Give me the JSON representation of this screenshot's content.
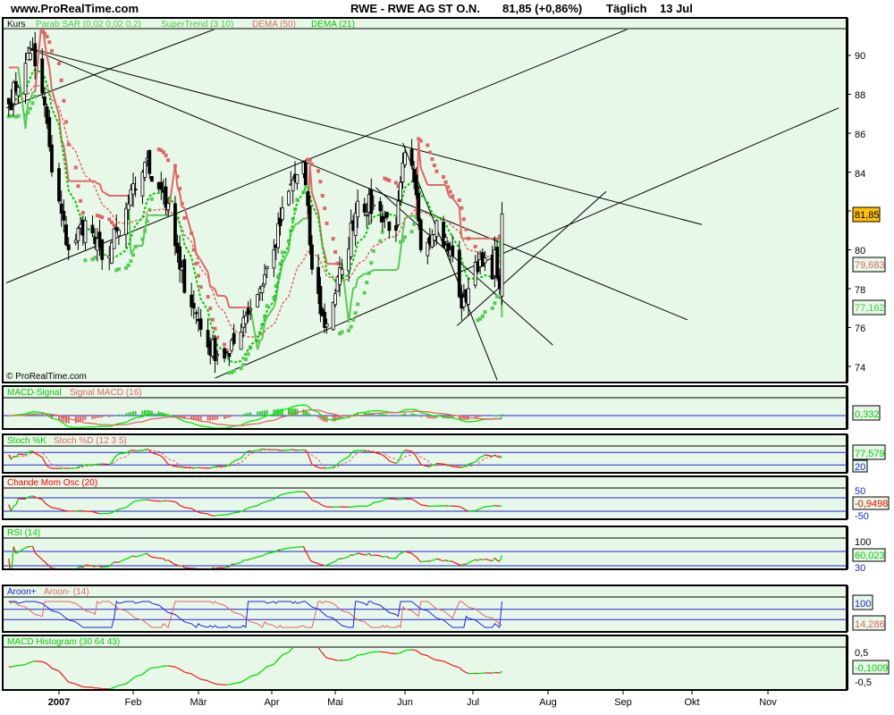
{
  "header": {
    "site": "www.ProRealTime.com",
    "instrument": "RWE - RWE AG ST O.N.",
    "quote": "81,85 (+0,86%)",
    "period": "Täglich",
    "date": "13 Jul"
  },
  "watermark": "© ProRealTime.com",
  "colors": {
    "background": "#e8f8e8",
    "up": "#00cc00",
    "down": "#e06666",
    "guide": "#2222dd",
    "last_price_box": "#ffc000"
  },
  "main": {
    "legend": [
      {
        "text": "Kurs",
        "color": "#000000"
      },
      {
        "text": "Parab SAR (0,02 0,02 0,2)",
        "color": "#44cc44"
      },
      {
        "text": "SuperTrend (3 10)",
        "color": "#44cc44"
      },
      {
        "text": "DEMA (50)",
        "color": "#e06666"
      },
      {
        "text": "DEMA (21)",
        "color": "#00cc00"
      }
    ],
    "y_ticks": [
      "90",
      "88",
      "86",
      "84",
      "80",
      "78",
      "76",
      "74"
    ],
    "readouts": {
      "last": "81,85",
      "dema50": "79,683",
      "supertrend": "77,162"
    }
  },
  "panels": {
    "macd": {
      "title_a": "MACD-Signal",
      "title_b": "Signal MACD (16)",
      "readout": "0,332"
    },
    "stoch": {
      "title_a": "Stoch %K",
      "title_b": "Stoch %D (12 3 5)",
      "readout": "77,579",
      "level": "20"
    },
    "cmo": {
      "title": "Chande Mom Osc (20)",
      "readout": "-0,9498",
      "upper": "50",
      "lower": "-50"
    },
    "rsi": {
      "title": "RSI (14)",
      "readout": "60,023",
      "upper": "100",
      "level": "30"
    },
    "aroon": {
      "title_a": "Aroon+",
      "title_b": "Aroon- (14)",
      "up_readout": "100",
      "down_readout": "14,286"
    },
    "hist": {
      "title": "MACD Histogram (30 64 43)",
      "readout": "-0,1009",
      "upper": "0,5",
      "lower": "-0,5"
    }
  },
  "chart_data": {
    "type": "candlestick",
    "x_ticks": [
      "2007",
      "Feb",
      "Mär",
      "Apr",
      "Mai",
      "Jun",
      "Jul",
      "Aug",
      "Sep",
      "Okt",
      "Nov"
    ],
    "ylim": [
      73.5,
      91.5
    ],
    "last_close": 81.85,
    "close_keypoints": [
      [
        "2006-12-11",
        87.5
      ],
      [
        "2006-12-18",
        89.6
      ],
      [
        "2006-12-21",
        90.3
      ],
      [
        "2006-12-27",
        86.5
      ],
      [
        "2006-12-29",
        84.0
      ],
      [
        "2007-01-05",
        80.0
      ],
      [
        "2007-01-12",
        81.5
      ],
      [
        "2007-01-19",
        79.5
      ],
      [
        "2007-01-26",
        81.0
      ],
      [
        "2007-02-06",
        84.5
      ],
      [
        "2007-02-14",
        83.0
      ],
      [
        "2007-02-21",
        79.0
      ],
      [
        "2007-02-27",
        77.0
      ],
      [
        "2007-03-05",
        75.0
      ],
      [
        "2007-03-14",
        74.5
      ],
      [
        "2007-03-20",
        76.5
      ],
      [
        "2007-03-27",
        78.0
      ],
      [
        "2007-04-02",
        80.0
      ],
      [
        "2007-04-09",
        83.0
      ],
      [
        "2007-04-16",
        84.5
      ],
      [
        "2007-04-20",
        79.0
      ],
      [
        "2007-04-26",
        76.0
      ],
      [
        "2007-05-04",
        79.0
      ],
      [
        "2007-05-11",
        82.5
      ],
      [
        "2007-05-21",
        82.0
      ],
      [
        "2007-05-28",
        81.0
      ],
      [
        "2007-06-01",
        85.0
      ],
      [
        "2007-06-05",
        83.5
      ],
      [
        "2007-06-08",
        80.0
      ],
      [
        "2007-06-15",
        81.5
      ],
      [
        "2007-06-21",
        80.0
      ],
      [
        "2007-06-26",
        77.0
      ],
      [
        "2007-06-29",
        78.0
      ],
      [
        "2007-07-04",
        79.5
      ],
      [
        "2007-07-09",
        78.5
      ],
      [
        "2007-07-10",
        80.0
      ],
      [
        "2007-07-12",
        78.0
      ],
      [
        "2007-07-13",
        81.85
      ]
    ],
    "trendlines": [
      {
        "from": [
          "2006-12-10",
          87.3
        ],
        "to": [
          "2007-03-09",
          91.4
        ]
      },
      {
        "from": [
          "2006-12-10",
          78.3
        ],
        "to": [
          "2007-09-04",
          91.4
        ]
      },
      {
        "from": [
          "2006-12-19",
          90.4
        ],
        "to": [
          "2007-10-05",
          81.3
        ]
      },
      {
        "from": [
          "2006-12-19",
          90.4
        ],
        "to": [
          "2007-09-29",
          76.4
        ]
      },
      {
        "from": [
          "2007-03-08",
          73.4
        ],
        "to": [
          "2007-11-30",
          87.3
        ]
      },
      {
        "from": [
          "2007-05-31",
          85.5
        ],
        "to": [
          "2007-07-11",
          73.3
        ]
      },
      {
        "from": [
          "2007-05-19",
          83.2
        ],
        "to": [
          "2007-08-03",
          75.1
        ]
      },
      {
        "from": [
          "2007-06-24",
          76.1
        ],
        "to": [
          "2007-08-25",
          83.0
        ]
      }
    ]
  }
}
